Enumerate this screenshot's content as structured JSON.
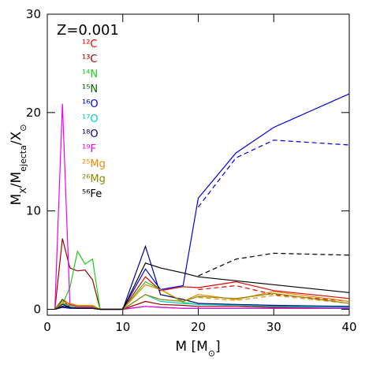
{
  "chart_data": {
    "type": "line",
    "title": "Z=0.001",
    "x_label": [
      "M [M",
      "⊙",
      "]"
    ],
    "y_label": [
      "M",
      "X",
      "/M",
      "ejecta",
      "/X",
      "⊙"
    ],
    "x": [
      1,
      2,
      3,
      4,
      5,
      6,
      7,
      10,
      13,
      15,
      18,
      20,
      25,
      30,
      40
    ],
    "xlim": [
      0,
      40
    ],
    "xticks": [
      0,
      10,
      20,
      30,
      40
    ],
    "ylim": [
      -0.6,
      30
    ],
    "yticks": [
      0,
      10,
      20,
      30
    ],
    "series": [
      {
        "name": "¹²C",
        "color": "#e00000",
        "values": [
          0,
          1.0,
          0.5,
          0.3,
          0.3,
          0.3,
          0,
          0,
          3.3,
          1.9,
          2.3,
          2.2,
          2.8,
          1.9,
          1.1
        ],
        "dashed_values": [
          null,
          null,
          null,
          null,
          null,
          null,
          null,
          null,
          null,
          null,
          null,
          2.0,
          2.4,
          1.5,
          0.8
        ]
      },
      {
        "name": "¹³C",
        "color": "#a00000",
        "values": [
          0,
          7.2,
          4.2,
          3.9,
          4.0,
          3.0,
          0,
          0,
          0.8,
          0.5,
          0.4,
          0.3,
          0.3,
          0.2,
          0.2
        ]
      },
      {
        "name": "¹⁴N",
        "color": "#22cc22",
        "values": [
          0,
          0.5,
          2.2,
          5.9,
          4.6,
          5.1,
          0,
          0,
          2.8,
          2.0,
          0.7,
          0.5,
          0.4,
          0.3,
          0.2
        ]
      },
      {
        "name": "¹⁵N",
        "color": "#006600",
        "values": [
          0,
          1.0,
          0.2,
          0.1,
          0.1,
          0.1,
          0,
          0,
          0.3,
          0.2,
          0.1,
          0.1,
          0.1,
          0.1,
          0.1
        ]
      },
      {
        "name": "¹⁶O",
        "color": "#0000e0",
        "values": [
          0,
          0.2,
          0.1,
          0.1,
          0.1,
          0.1,
          0,
          0,
          4.1,
          2.0,
          2.4,
          11.3,
          15.9,
          18.5,
          21.9
        ],
        "dashed_values": [
          null,
          null,
          null,
          null,
          null,
          null,
          null,
          null,
          null,
          null,
          null,
          10.4,
          15.4,
          17.2,
          16.7
        ]
      },
      {
        "name": "¹⁷O",
        "color": "#00cccc",
        "values": [
          0,
          0.5,
          0.4,
          0.2,
          0.2,
          0.2,
          0,
          0,
          1.5,
          0.8,
          0.6,
          0.5,
          0.4,
          0.3,
          0.2
        ]
      },
      {
        "name": "¹⁸O",
        "color": "#000080",
        "values": [
          0,
          0.5,
          0.2,
          0.1,
          0.1,
          0.1,
          0,
          0,
          6.4,
          1.5,
          1.0,
          0.6,
          0.5,
          0.4,
          0.3
        ]
      },
      {
        "name": "¹⁹F",
        "color": "#ee00ee",
        "values": [
          0,
          20.9,
          0.5,
          0.2,
          0.2,
          0.2,
          0,
          0,
          0.3,
          0.2,
          0.1,
          0.1,
          0.1,
          0.1,
          0.1
        ]
      },
      {
        "name": "²⁵Mg",
        "color": "#ee8800",
        "values": [
          0,
          0.8,
          0.6,
          0.4,
          0.4,
          0.4,
          0,
          0,
          2.5,
          2.0,
          0.8,
          1.5,
          1.0,
          1.8,
          0.8
        ],
        "dashed_values": [
          null,
          null,
          null,
          null,
          null,
          null,
          null,
          null,
          null,
          null,
          null,
          1.2,
          0.9,
          1.4,
          0.6
        ]
      },
      {
        "name": "²⁶Mg",
        "color": "#888800",
        "values": [
          0,
          0.6,
          0.4,
          0.3,
          0.3,
          0.3,
          0,
          0,
          1.5,
          1.0,
          0.8,
          1.3,
          1.1,
          1.6,
          0.6
        ]
      },
      {
        "name": "⁵⁶Fe",
        "color": "#000000",
        "values": [
          0,
          0.3,
          0.2,
          0.1,
          0.1,
          0.1,
          0,
          0,
          4.7,
          4.2,
          3.7,
          3.3,
          2.9,
          2.5,
          1.7
        ],
        "dashed_values": [
          null,
          null,
          null,
          null,
          null,
          null,
          null,
          null,
          null,
          null,
          null,
          3.4,
          5.1,
          5.7,
          5.5
        ]
      }
    ]
  }
}
